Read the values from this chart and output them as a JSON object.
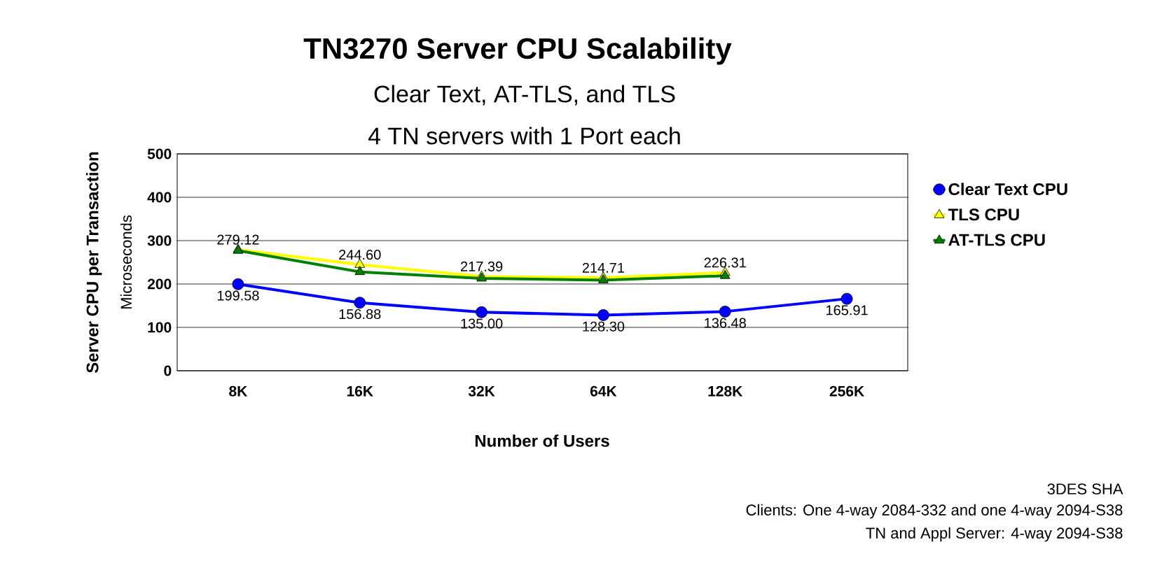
{
  "chart_data": {
    "type": "line",
    "title": "TN3270 Server CPU Scalability",
    "subtitle": "Clear Text, AT-TLS, and TLS",
    "xlabel": "Number of Users",
    "ylabel": "Server CPU per Transaction",
    "annotations": [
      "4 TN servers with 1 Port each",
      "Microseconds",
      "3DES SHA",
      "Clients: One 4-way 2084-332 and one 4-way 2094-S38",
      "TN and Appl Server: 4-way 2094-S38"
    ],
    "categories": [
      "8K",
      "16K",
      "32K",
      "64K",
      "128K",
      "256K"
    ],
    "series": [
      {
        "name": "Clear Text CPU",
        "color": "#0000ff",
        "marker": "circle",
        "values": [
          199.58,
          156.88,
          135.0,
          128.3,
          136.48,
          165.91
        ],
        "value_labels": [
          "199.58",
          "156.88",
          "135.00",
          "128.30",
          "136.48",
          "165.91"
        ]
      },
      {
        "name": "TLS CPU",
        "color": "#ffff00",
        "marker": "triangle",
        "values": [
          279.12,
          244.6,
          217.39,
          214.71,
          226.31,
          null
        ],
        "value_labels": [
          "279.12",
          "244.60",
          "217.39",
          "214.71",
          "226.31",
          null
        ]
      },
      {
        "name": "AT-TLS CPU",
        "color": "#008000",
        "marker": "triangle",
        "values": [
          277,
          228,
          213,
          209,
          219,
          null
        ]
      }
    ],
    "ylim": [
      0,
      500
    ],
    "yticks": [
      0,
      100,
      200,
      300,
      400,
      500
    ],
    "grid": "y",
    "legend": "right",
    "line_style": "solid"
  }
}
